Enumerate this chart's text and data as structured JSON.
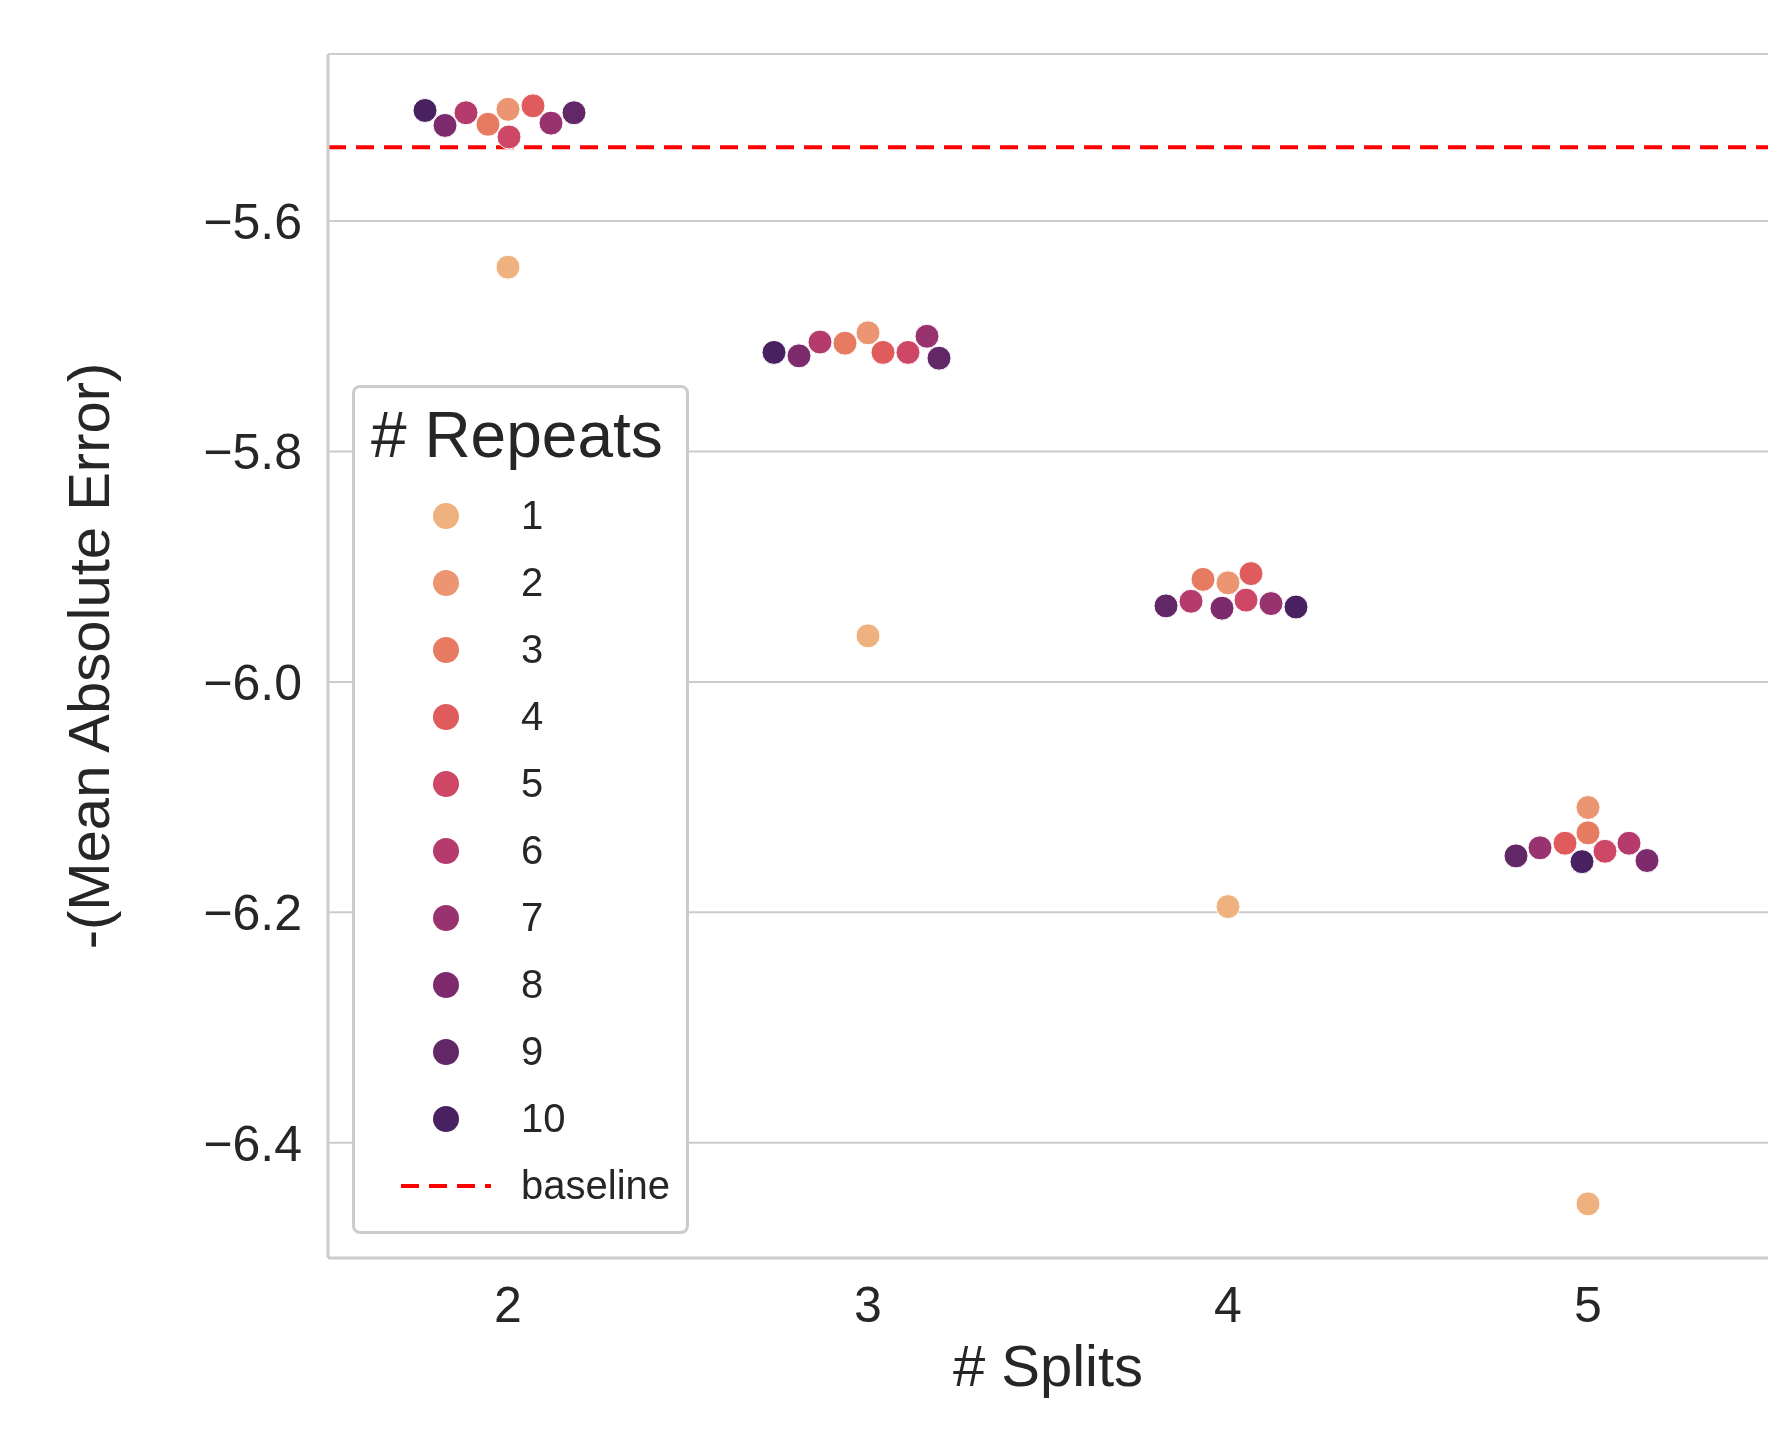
{
  "chart_data": {
    "type": "scatter",
    "xlabel": "# Splits",
    "ylabel": "-(Mean Absolute Error)",
    "legend_title": "# Repeats",
    "categories": [
      "2",
      "3",
      "4",
      "5"
    ],
    "series": [
      {
        "name": "1",
        "color": "#efb27f",
        "values": [
          -5.64,
          -5.96,
          -6.195,
          -6.453
        ]
      },
      {
        "name": "2",
        "color": "#eb9572",
        "values": [
          -5.503,
          -5.697,
          -5.914,
          -6.109
        ]
      },
      {
        "name": "3",
        "color": "#e77b62",
        "values": [
          -5.516,
          -5.706,
          -5.911,
          -6.131
        ]
      },
      {
        "name": "4",
        "color": "#e05c5c",
        "values": [
          -5.5,
          -5.714,
          -5.906,
          -6.14
        ]
      },
      {
        "name": "5",
        "color": "#cf4766",
        "values": [
          -5.527,
          -5.714,
          -5.929,
          -6.147
        ]
      },
      {
        "name": "6",
        "color": "#b43b6c",
        "values": [
          -5.506,
          -5.705,
          -5.93,
          -6.14
        ]
      },
      {
        "name": "7",
        "color": "#993370",
        "values": [
          -5.515,
          -5.7,
          -5.932,
          -6.144
        ]
      },
      {
        "name": "8",
        "color": "#7d2b6d",
        "values": [
          -5.517,
          -5.717,
          -5.936,
          -6.155
        ]
      },
      {
        "name": "9",
        "color": "#612766",
        "values": [
          -5.506,
          -5.719,
          -5.934,
          -6.151
        ]
      },
      {
        "name": "10",
        "color": "#4a2160",
        "values": [
          -5.504,
          -5.714,
          -5.935,
          -6.156
        ]
      }
    ],
    "ylim": [
      -6.5,
      -5.455
    ],
    "yticks": [
      {
        "value": -5.6,
        "label": "−5.6"
      },
      {
        "value": -5.8,
        "label": "−5.8"
      },
      {
        "value": -6.0,
        "label": "−6.0"
      },
      {
        "value": -6.2,
        "label": "−6.2"
      },
      {
        "value": -6.4,
        "label": "−6.4"
      }
    ],
    "grid": "y",
    "legend": "bottom left",
    "marker": "circle",
    "ref_lines": [
      {
        "axis": "y",
        "value": -5.536,
        "label": "baseline",
        "color": "#ff0000",
        "line_style": "dashed"
      }
    ]
  }
}
